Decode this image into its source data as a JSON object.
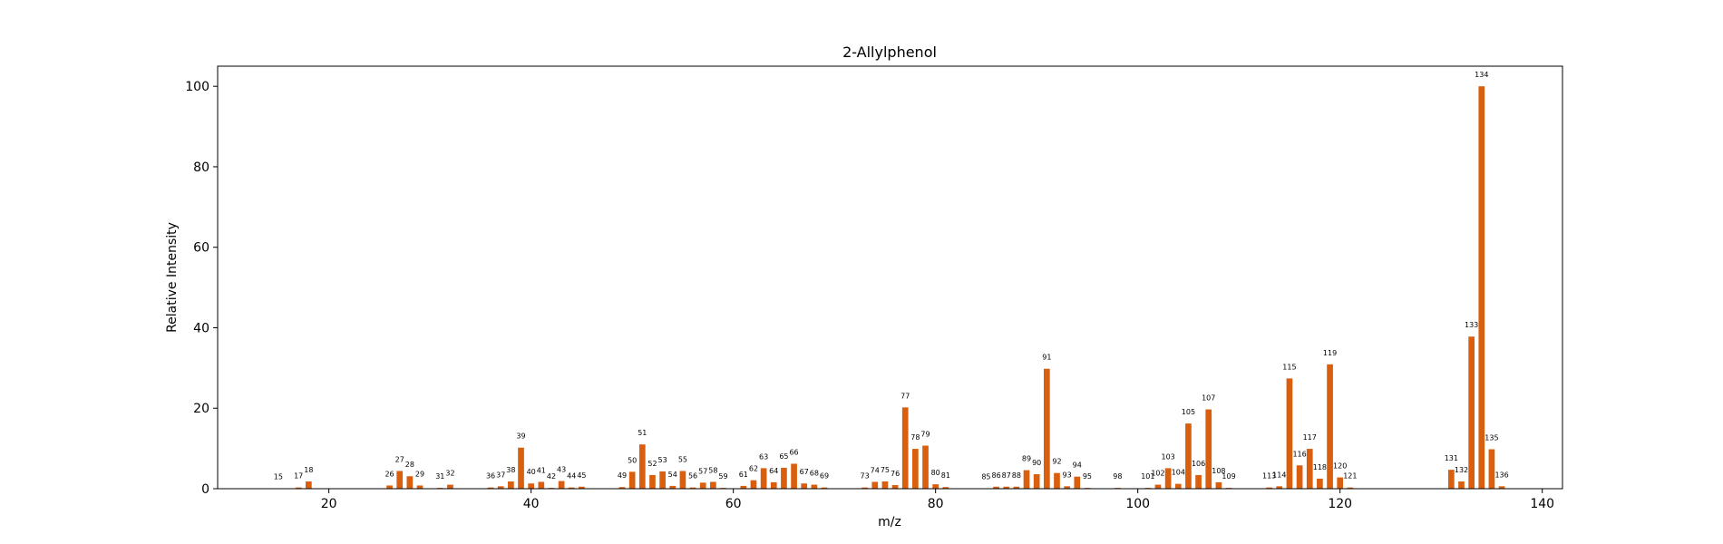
{
  "chart_data": {
    "type": "bar",
    "title": "2-Allylphenol",
    "xlabel": "m/z",
    "ylabel": "Relative Intensity",
    "xlim": [
      9,
      142
    ],
    "ylim": [
      0,
      105
    ],
    "xticks": [
      20,
      40,
      60,
      80,
      100,
      120,
      140
    ],
    "yticks": [
      0,
      20,
      40,
      60,
      80,
      100
    ],
    "bar_color": "#d95f0e",
    "grid": false,
    "x": [
      15,
      17,
      18,
      26,
      27,
      28,
      29,
      31,
      32,
      36,
      37,
      38,
      39,
      40,
      41,
      42,
      43,
      44,
      45,
      49,
      50,
      51,
      52,
      53,
      54,
      55,
      56,
      57,
      58,
      59,
      61,
      62,
      63,
      64,
      65,
      66,
      67,
      68,
      69,
      73,
      74,
      75,
      76,
      77,
      78,
      79,
      80,
      81,
      85,
      86,
      87,
      88,
      89,
      90,
      91,
      92,
      93,
      94,
      95,
      98,
      101,
      102,
      103,
      104,
      105,
      106,
      107,
      108,
      109,
      113,
      114,
      115,
      116,
      117,
      118,
      119,
      120,
      121,
      131,
      132,
      133,
      134,
      135,
      136
    ],
    "values": [
      0.1,
      0.3,
      1.8,
      0.8,
      4.4,
      3.1,
      0.8,
      0.2,
      1.0,
      0.3,
      0.6,
      1.8,
      10.2,
      1.3,
      1.7,
      0.2,
      1.9,
      0.3,
      0.5,
      0.4,
      4.2,
      11.0,
      3.4,
      4.3,
      0.7,
      4.4,
      0.3,
      1.5,
      1.7,
      0.2,
      0.7,
      2.1,
      5.1,
      1.6,
      5.2,
      6.2,
      1.3,
      1.0,
      0.3,
      0.3,
      1.7,
      1.8,
      0.9,
      20.2,
      9.9,
      10.7,
      1.1,
      0.4,
      0.1,
      0.5,
      0.5,
      0.5,
      4.6,
      3.6,
      29.8,
      3.9,
      0.6,
      3.0,
      0.2,
      0.2,
      0.2,
      1.0,
      5.1,
      1.2,
      16.2,
      3.4,
      19.7,
      1.6,
      0.2,
      0.3,
      0.6,
      27.4,
      5.8,
      9.9,
      2.5,
      30.9,
      2.8,
      0.3,
      4.7,
      1.8,
      37.8,
      100.0,
      9.8,
      0.6
    ],
    "labels": [
      "15",
      "17",
      "18",
      "26",
      "27",
      "28",
      "29",
      "31",
      "32",
      "36",
      "37",
      "38",
      "39",
      "40",
      "41",
      "42",
      "43",
      "44",
      "45",
      "49",
      "50",
      "51",
      "52",
      "53",
      "54",
      "55",
      "56",
      "57",
      "58",
      "59",
      "61",
      "62",
      "63",
      "64",
      "65",
      "66",
      "67",
      "68",
      "69",
      "73",
      "74",
      "75",
      "76",
      "77",
      "78",
      "79",
      "80",
      "81",
      "85",
      "86",
      "87",
      "88",
      "89",
      "90",
      "91",
      "92",
      "93",
      "94",
      "95",
      "98",
      "101",
      "102",
      "103",
      "104",
      "105",
      "106",
      "107",
      "108",
      "109",
      "113",
      "114",
      "115",
      "116",
      "117",
      "118",
      "119",
      "120",
      "121",
      "131",
      "132",
      "133",
      "134",
      "135",
      "136"
    ]
  }
}
